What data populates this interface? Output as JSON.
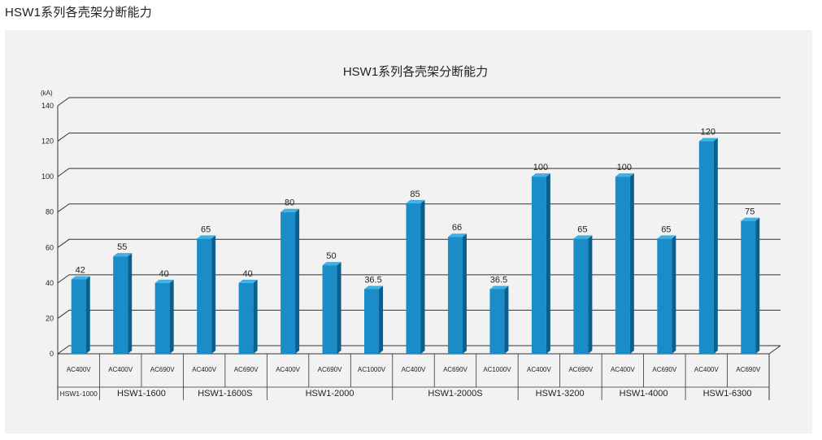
{
  "page": {
    "heading": "HSW1系列各壳架分断能力"
  },
  "colors": {
    "bar_front": "#1a8cc7",
    "bar_side": "#0b5f8c",
    "bar_top": "#3fb1e3",
    "grid": "#333333",
    "panel": "#f2f2f2"
  },
  "chart_data": {
    "type": "bar",
    "title": "HSW1系列各壳架分断能力",
    "ylabel": "(kA)",
    "xlabel": "",
    "ylim": [
      0,
      140
    ],
    "yticks": [
      0,
      20,
      40,
      60,
      80,
      100,
      120,
      140
    ],
    "grid": true,
    "groups": [
      {
        "name": "HSW1-1000",
        "bars": [
          {
            "voltage": "AC400V",
            "value": 42,
            "label": "42"
          }
        ]
      },
      {
        "name": "HSW1-1600",
        "bars": [
          {
            "voltage": "AC400V",
            "value": 55,
            "label": "55"
          },
          {
            "voltage": "AC690V",
            "value": 40,
            "label": "40"
          }
        ]
      },
      {
        "name": "HSW1-1600S",
        "bars": [
          {
            "voltage": "AC400V",
            "value": 65,
            "label": "65"
          },
          {
            "voltage": "AC690V",
            "value": 40,
            "label": "40"
          }
        ]
      },
      {
        "name": "HSW1-2000",
        "bars": [
          {
            "voltage": "AC400V",
            "value": 80,
            "label": "80"
          },
          {
            "voltage": "AC690V",
            "value": 50,
            "label": "50"
          },
          {
            "voltage": "AC1000V",
            "value": 36.5,
            "label": "36.5"
          }
        ]
      },
      {
        "name": "HSW1-2000S",
        "bars": [
          {
            "voltage": "AC400V",
            "value": 85,
            "label": "85"
          },
          {
            "voltage": "AC690V",
            "value": 66,
            "label": "66"
          },
          {
            "voltage": "AC1000V",
            "value": 36.5,
            "label": "36.5"
          }
        ]
      },
      {
        "name": "HSW1-3200",
        "bars": [
          {
            "voltage": "AC400V",
            "value": 100,
            "label": "100"
          },
          {
            "voltage": "AC690V",
            "value": 65,
            "label": "65"
          }
        ]
      },
      {
        "name": "HSW1-4000",
        "bars": [
          {
            "voltage": "AC400V",
            "value": 100,
            "label": "100"
          },
          {
            "voltage": "AC690V",
            "value": 65,
            "label": "65"
          }
        ]
      },
      {
        "name": "HSW1-6300",
        "bars": [
          {
            "voltage": "AC400V",
            "value": 120,
            "label": "120"
          },
          {
            "voltage": "AC690V",
            "value": 75,
            "label": "75"
          }
        ]
      }
    ]
  }
}
